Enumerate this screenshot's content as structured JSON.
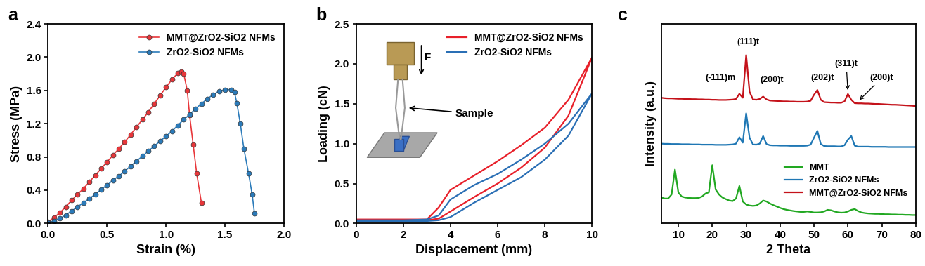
{
  "chart_data": [
    {
      "type": "line",
      "title": "a",
      "x_label": "Strain (%)",
      "y_label": "Stress (MPa)",
      "xlim": [
        0,
        2
      ],
      "ylim": [
        0,
        2.4
      ],
      "xticks": [
        {
          "value": 0,
          "label": "0.0"
        },
        0.5,
        {
          "value": 1,
          "label": "1.0"
        },
        1.5,
        {
          "value": 2,
          "label": "2.0"
        }
      ],
      "yticks": [
        {
          "value": 0,
          "label": "0.0"
        },
        0.4,
        0.8,
        1.2,
        1.6,
        {
          "value": 2,
          "label": "2.0"
        },
        2.4
      ],
      "legend": "upper right",
      "series": [
        {
          "name": "MMT@ZrO2-SiO2 NFMs",
          "color": "#e8363a",
          "marker": "circle",
          "line_style": "solid",
          "x": [
            0,
            0.05,
            0.1,
            0.15,
            0.2,
            0.25,
            0.3,
            0.35,
            0.4,
            0.45,
            0.5,
            0.55,
            0.6,
            0.65,
            0.7,
            0.75,
            0.8,
            0.85,
            0.9,
            0.95,
            1.0,
            1.05,
            1.1,
            1.13,
            1.15,
            1.18,
            1.2,
            1.23,
            1.26,
            1.3
          ],
          "values": [
            0.02,
            0.07,
            0.13,
            0.2,
            0.28,
            0.35,
            0.42,
            0.5,
            0.58,
            0.66,
            0.74,
            0.82,
            0.9,
            0.98,
            1.07,
            1.16,
            1.25,
            1.34,
            1.44,
            1.54,
            1.64,
            1.73,
            1.81,
            1.83,
            1.8,
            1.6,
            1.3,
            0.95,
            0.6,
            0.25
          ]
        },
        {
          "name": "ZrO2-SiO2 NFMs",
          "color": "#2b7bba",
          "marker": "circle",
          "line_style": "solid",
          "x": [
            0,
            0.05,
            0.1,
            0.15,
            0.2,
            0.25,
            0.3,
            0.35,
            0.4,
            0.45,
            0.5,
            0.55,
            0.6,
            0.65,
            0.7,
            0.75,
            0.8,
            0.85,
            0.9,
            0.95,
            1.0,
            1.05,
            1.1,
            1.15,
            1.2,
            1.25,
            1.3,
            1.35,
            1.4,
            1.45,
            1.5,
            1.55,
            1.58,
            1.6,
            1.63,
            1.66,
            1.7,
            1.73,
            1.75
          ],
          "values": [
            0.01,
            0.03,
            0.06,
            0.1,
            0.15,
            0.2,
            0.25,
            0.3,
            0.35,
            0.41,
            0.46,
            0.52,
            0.57,
            0.63,
            0.69,
            0.75,
            0.81,
            0.87,
            0.93,
            0.99,
            1.05,
            1.11,
            1.18,
            1.25,
            1.31,
            1.38,
            1.44,
            1.5,
            1.55,
            1.59,
            1.61,
            1.61,
            1.58,
            1.45,
            1.2,
            0.9,
            0.6,
            0.35,
            0.12
          ]
        }
      ]
    },
    {
      "type": "line",
      "title": "b",
      "x_label": "Displacement (mm)",
      "y_label": "Loading (cN)",
      "xlim": [
        0,
        10
      ],
      "ylim": [
        0,
        2.5
      ],
      "xticks": [
        0,
        2,
        4,
        6,
        8,
        10
      ],
      "yticks": [
        {
          "value": 0,
          "label": "0.0"
        },
        0.5,
        {
          "value": 1,
          "label": "1.0"
        },
        1.5,
        {
          "value": 2,
          "label": "2.0"
        },
        2.5
      ],
      "legend": "upper right",
      "annotations": [
        {
          "text": "F"
        },
        {
          "text": "Sample"
        }
      ],
      "series": [
        {
          "name": "MMT@ZrO2-SiO2 NFMs",
          "color": "#e8202a",
          "line_style": "solid",
          "x": [
            0,
            1,
            2,
            3,
            3.5,
            4,
            5,
            6,
            7,
            8,
            9,
            10,
            9,
            8,
            7,
            6,
            5,
            4,
            3.5,
            3,
            2,
            1,
            0
          ],
          "values": [
            0.05,
            0.05,
            0.05,
            0.05,
            0.2,
            0.42,
            0.6,
            0.78,
            0.98,
            1.2,
            1.55,
            2.08,
            1.35,
            0.95,
            0.7,
            0.5,
            0.33,
            0.15,
            0.06,
            0.04,
            0.04,
            0.04,
            0.04
          ]
        },
        {
          "name": "ZrO2-SiO2 NFMs",
          "color": "#2a6fb5",
          "line_style": "solid",
          "x": [
            0,
            1,
            2,
            3,
            3.5,
            4,
            5,
            6,
            7,
            8,
            9,
            10,
            9,
            8,
            7,
            6,
            5,
            4,
            3.5,
            3,
            2,
            1,
            0
          ],
          "values": [
            0.04,
            0.04,
            0.04,
            0.05,
            0.1,
            0.3,
            0.48,
            0.62,
            0.8,
            1.0,
            1.25,
            1.63,
            1.1,
            0.8,
            0.58,
            0.42,
            0.26,
            0.08,
            0.04,
            0.03,
            0.03,
            0.03,
            0.03
          ]
        }
      ]
    },
    {
      "type": "line",
      "title": "c",
      "x_label": "2 Theta",
      "y_label": "Intensity (a.u.)",
      "xlim": [
        5,
        80
      ],
      "ylim": [
        0,
        10
      ],
      "xticks": [
        10,
        20,
        30,
        40,
        50,
        60,
        70,
        80
      ],
      "yticks": [],
      "tick_labels": "x",
      "legend": "lower right",
      "annotations": [
        {
          "text": "(-111)m",
          "x": 28
        },
        {
          "text": "(111)t",
          "x": 30
        },
        {
          "text": "(200)t",
          "x": 35
        },
        {
          "text": "(202)t",
          "x": 51
        },
        {
          "text": "(311)t",
          "x": 60
        },
        {
          "text": "(200)t",
          "x": 63
        }
      ],
      "x": [
        5,
        6,
        7,
        8,
        9,
        10,
        11,
        12,
        13,
        14,
        15,
        16,
        17,
        18,
        19,
        20,
        21,
        22,
        23,
        24,
        25,
        26,
        27,
        28,
        29,
        30,
        31,
        32,
        33,
        34,
        35,
        36,
        37,
        38,
        39,
        40,
        41,
        42,
        43,
        44,
        45,
        46,
        47,
        48,
        49,
        50,
        51,
        52,
        53,
        54,
        55,
        56,
        57,
        58,
        59,
        60,
        61,
        62,
        63,
        64,
        65,
        66,
        67,
        68,
        69,
        70,
        71,
        72,
        73,
        74,
        75,
        76,
        77,
        78,
        79,
        80
      ],
      "series": [
        {
          "name": "MMT",
          "color": "#22a822",
          "line_style": "solid",
          "values": [
            1.3,
            1.25,
            1.25,
            1.45,
            2.7,
            1.55,
            1.35,
            1.3,
            1.28,
            1.27,
            1.27,
            1.28,
            1.35,
            1.5,
            1.56,
            2.92,
            1.7,
            1.45,
            1.3,
            1.22,
            1.15,
            1.12,
            1.25,
            1.88,
            1.1,
            0.95,
            0.9,
            0.88,
            0.9,
            1.0,
            1.15,
            1.1,
            1.0,
            0.92,
            0.85,
            0.78,
            0.72,
            0.68,
            0.65,
            0.62,
            0.6,
            0.58,
            0.58,
            0.6,
            0.58,
            0.55,
            0.55,
            0.56,
            0.6,
            0.68,
            0.66,
            0.6,
            0.56,
            0.54,
            0.55,
            0.6,
            0.68,
            0.72,
            0.62,
            0.55,
            0.52,
            0.5,
            0.49,
            0.48,
            0.48,
            0.47,
            0.46,
            0.46,
            0.45,
            0.45,
            0.44,
            0.44,
            0.43,
            0.43,
            0.42,
            0.42
          ]
        },
        {
          "name": "ZrO2-SiO2 NFMs",
          "color": "#1f77b4",
          "line_style": "solid",
          "values": [
            4.0,
            3.99,
            3.99,
            3.98,
            3.98,
            3.98,
            3.97,
            3.97,
            3.97,
            3.96,
            3.96,
            3.96,
            3.95,
            3.95,
            3.95,
            3.95,
            3.94,
            3.94,
            3.94,
            3.94,
            3.95,
            3.96,
            4.0,
            4.32,
            4.05,
            5.52,
            4.3,
            3.96,
            3.95,
            4.0,
            4.38,
            3.98,
            3.92,
            3.91,
            3.91,
            3.9,
            3.9,
            3.9,
            3.89,
            3.89,
            3.89,
            3.89,
            3.89,
            3.9,
            3.95,
            4.3,
            4.64,
            3.98,
            3.88,
            3.87,
            3.87,
            3.87,
            3.86,
            3.86,
            3.92,
            4.2,
            4.38,
            3.9,
            3.85,
            3.85,
            3.85,
            3.85,
            3.84,
            3.84,
            3.84,
            3.84,
            3.84,
            3.83,
            3.83,
            3.83,
            3.83,
            3.83,
            3.83,
            3.83,
            3.83,
            3.83
          ]
        },
        {
          "name": "MMT@ZrO2-SiO2 NFMs",
          "color": "#c4121a",
          "line_style": "solid",
          "values": [
            6.3,
            6.28,
            6.27,
            6.27,
            6.26,
            6.25,
            6.25,
            6.24,
            6.24,
            6.23,
            6.23,
            6.22,
            6.22,
            6.21,
            6.21,
            6.2,
            6.2,
            6.19,
            6.19,
            6.19,
            6.2,
            6.21,
            6.24,
            6.5,
            6.3,
            8.44,
            6.6,
            6.22,
            6.2,
            6.24,
            6.36,
            6.22,
            6.16,
            6.15,
            6.14,
            6.13,
            6.12,
            6.12,
            6.11,
            6.11,
            6.1,
            6.1,
            6.1,
            6.11,
            6.15,
            6.45,
            6.69,
            6.2,
            6.08,
            6.07,
            6.06,
            6.06,
            6.05,
            6.05,
            6.12,
            6.49,
            6.2,
            6.03,
            6.02,
            6.02,
            6.01,
            6.01,
            6.0,
            5.99,
            5.99,
            5.98,
            5.97,
            5.96,
            5.95,
            5.95,
            5.94,
            5.93,
            5.92,
            5.91,
            5.9,
            5.88
          ]
        }
      ]
    }
  ]
}
